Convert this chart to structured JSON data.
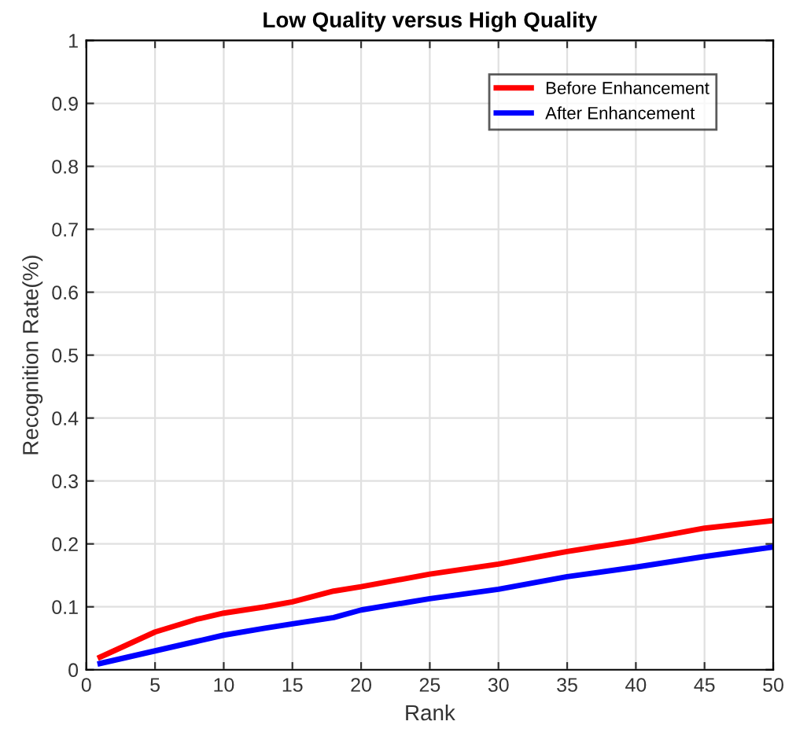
{
  "chart_data": {
    "type": "line",
    "title": "Low Quality versus High Quality",
    "xlabel": "Rank",
    "ylabel": "Recognition Rate(%)",
    "x": [
      1,
      2,
      3,
      5,
      8,
      10,
      13,
      15,
      18,
      20,
      25,
      30,
      35,
      40,
      45,
      50
    ],
    "series": [
      {
        "name": "Before Enhancement",
        "color": "#ff0000",
        "values": [
          0.02,
          0.03,
          0.04,
          0.06,
          0.08,
          0.09,
          0.1,
          0.108,
          0.125,
          0.132,
          0.152,
          0.168,
          0.188,
          0.205,
          0.225,
          0.237
        ]
      },
      {
        "name": "After Enhancement",
        "color": "#0000ff",
        "values": [
          0.01,
          0.015,
          0.02,
          0.03,
          0.045,
          0.055,
          0.066,
          0.073,
          0.083,
          0.095,
          0.113,
          0.128,
          0.148,
          0.163,
          0.18,
          0.195
        ]
      }
    ],
    "xlim": [
      0,
      50
    ],
    "ylim": [
      0,
      1
    ],
    "xticks": [
      0,
      5,
      10,
      15,
      20,
      25,
      30,
      35,
      40,
      45,
      50
    ],
    "yticks": [
      0,
      0.1,
      0.2,
      0.3,
      0.4,
      0.5,
      0.6,
      0.7,
      0.8,
      0.9,
      1
    ],
    "grid": true,
    "legend": "top right"
  }
}
